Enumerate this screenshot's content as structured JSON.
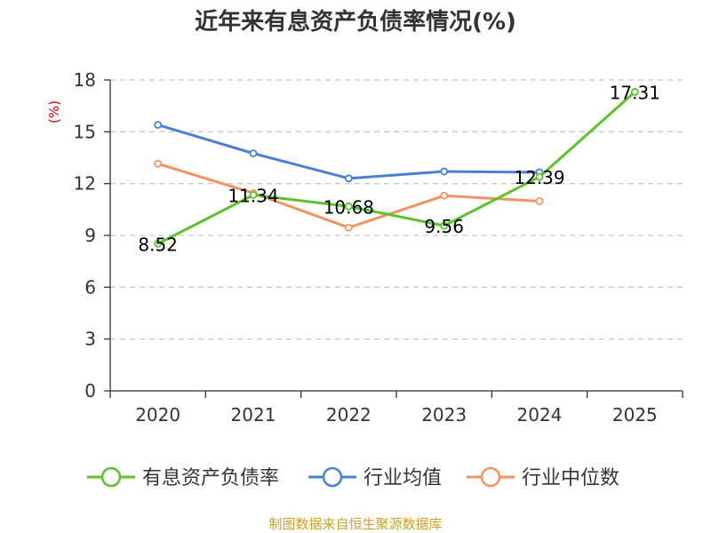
{
  "chart_data": {
    "type": "line",
    "title": "近年来有息资产负债率情况(%)",
    "ylabel": "(%)",
    "ylim": [
      0,
      18
    ],
    "y_ticks": [
      0,
      3,
      6,
      9,
      12,
      15,
      18
    ],
    "categories": [
      "2020",
      "2021",
      "2022",
      "2023",
      "2024",
      "2025"
    ],
    "grid": "horizontal dashed",
    "legend_position": "bottom",
    "series": [
      {
        "name": "有息资产负债率",
        "color": "#5cc22b",
        "values": [
          8.52,
          11.34,
          10.68,
          9.56,
          12.39,
          17.31
        ],
        "labels": [
          "8.52",
          "11.34",
          "10.68",
          "9.56",
          "12.39",
          "17.31"
        ]
      },
      {
        "name": "行业均值",
        "color": "#4a7fd6",
        "values": [
          15.4,
          13.75,
          12.3,
          12.7,
          12.65,
          null
        ]
      },
      {
        "name": "行业中位数",
        "color": "#f4935f",
        "values": [
          13.15,
          11.45,
          9.45,
          11.3,
          10.98,
          null
        ]
      }
    ],
    "unit_color": "#cc0000"
  },
  "source": {
    "text": "制图数据来自恒生聚源数据库",
    "color": "#c9a227"
  }
}
